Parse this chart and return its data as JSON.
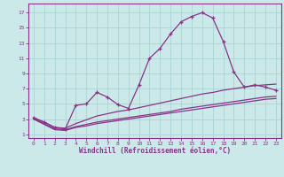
{
  "xlabel": "Windchill (Refroidissement éolien,°C)",
  "background_color": "#cce9e9",
  "grid_color": "#aad4d4",
  "line_color": "#883388",
  "x_ticks": [
    0,
    1,
    2,
    3,
    4,
    5,
    6,
    7,
    8,
    9,
    10,
    11,
    12,
    13,
    14,
    15,
    16,
    17,
    18,
    19,
    20,
    21,
    22,
    23
  ],
  "y_ticks": [
    1,
    3,
    5,
    7,
    9,
    11,
    13,
    15,
    17
  ],
  "xlim": [
    -0.5,
    23.5
  ],
  "ylim": [
    0.5,
    18.2
  ],
  "line1_x": [
    0,
    1,
    2,
    3,
    4,
    5,
    6,
    7,
    8,
    9,
    10,
    11,
    12,
    13,
    14,
    15,
    16,
    17,
    18,
    19,
    20,
    21,
    22,
    23
  ],
  "line1_y": [
    3.2,
    2.6,
    1.9,
    1.7,
    4.8,
    5.0,
    6.5,
    5.9,
    4.9,
    4.4,
    7.5,
    11.0,
    12.3,
    14.2,
    15.8,
    16.5,
    17.0,
    16.3,
    13.2,
    9.2,
    7.2,
    7.5,
    7.2,
    6.8
  ],
  "line2_x": [
    0,
    1,
    2,
    3,
    4,
    5,
    6,
    7,
    8,
    9,
    10,
    11,
    12,
    13,
    14,
    15,
    16,
    17,
    18,
    19,
    20,
    21,
    22,
    23
  ],
  "line2_y": [
    3.1,
    2.6,
    1.9,
    1.8,
    2.4,
    2.9,
    3.4,
    3.7,
    4.0,
    4.2,
    4.5,
    4.8,
    5.1,
    5.4,
    5.7,
    6.0,
    6.3,
    6.5,
    6.8,
    7.0,
    7.2,
    7.4,
    7.5,
    7.6
  ],
  "line3_x": [
    0,
    1,
    2,
    3,
    4,
    5,
    6,
    7,
    8,
    9,
    10,
    11,
    12,
    13,
    14,
    15,
    16,
    17,
    18,
    19,
    20,
    21,
    22,
    23
  ],
  "line3_y": [
    3.0,
    2.4,
    1.7,
    1.6,
    2.0,
    2.3,
    2.6,
    2.8,
    3.0,
    3.2,
    3.4,
    3.6,
    3.8,
    4.0,
    4.3,
    4.5,
    4.7,
    4.9,
    5.1,
    5.3,
    5.5,
    5.7,
    5.9,
    6.0
  ],
  "line4_x": [
    0,
    1,
    2,
    3,
    4,
    5,
    6,
    7,
    8,
    9,
    10,
    11,
    12,
    13,
    14,
    15,
    16,
    17,
    18,
    19,
    20,
    21,
    22,
    23
  ],
  "line4_y": [
    3.0,
    2.3,
    1.6,
    1.5,
    1.9,
    2.1,
    2.4,
    2.6,
    2.8,
    3.0,
    3.2,
    3.4,
    3.6,
    3.8,
    4.0,
    4.2,
    4.4,
    4.6,
    4.8,
    5.0,
    5.2,
    5.4,
    5.6,
    5.7
  ]
}
